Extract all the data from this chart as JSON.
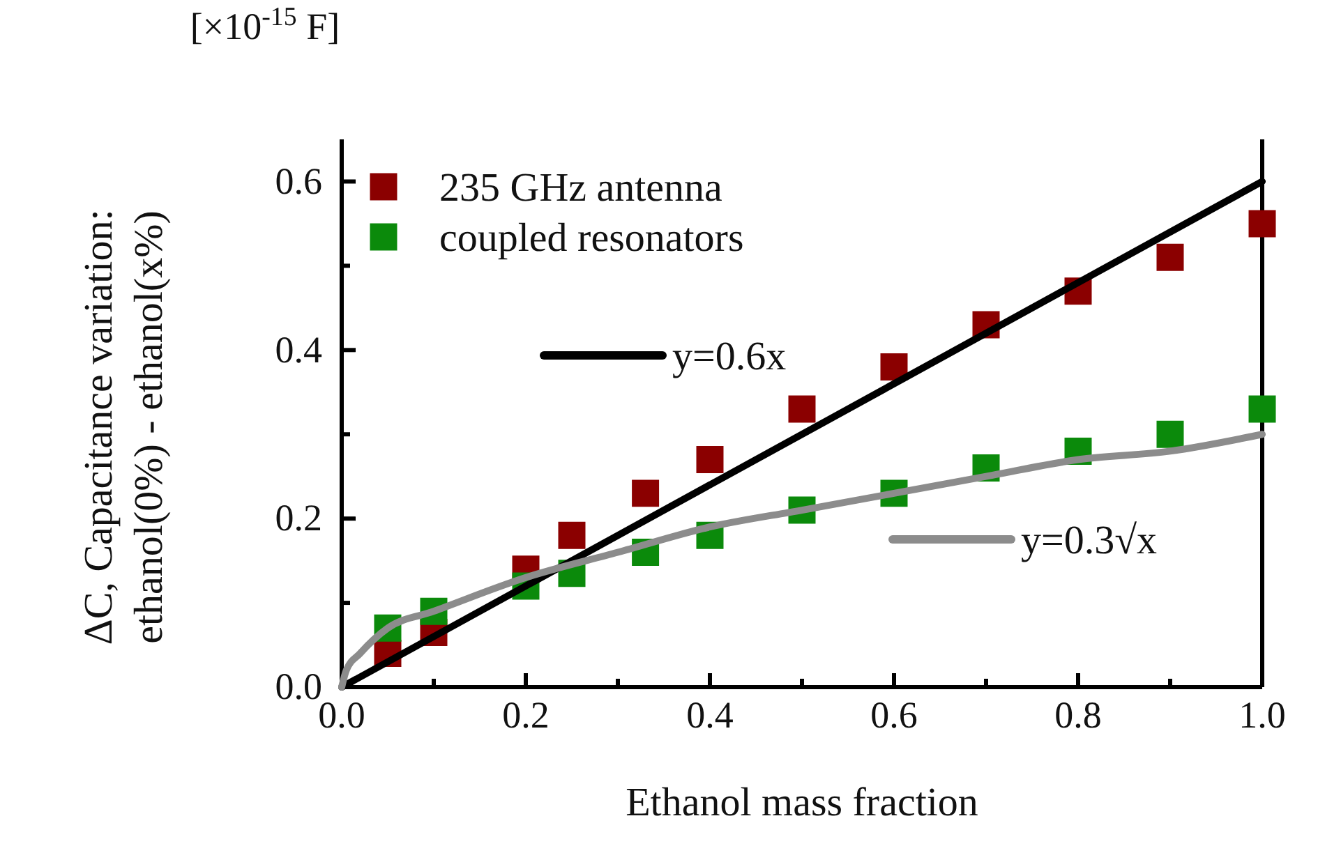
{
  "chart_data": {
    "type": "scatter",
    "xlabel": "Ethanol mass fraction",
    "ylabel": "ΔC, Capacitance variation:\nethanol(0%) - ethanol(x%)",
    "annotations": [
      "[×10$^{-15}$ F]"
    ],
    "xlim": [
      0,
      1.0
    ],
    "ylim": [
      0,
      0.65
    ],
    "xticks": [
      {
        "value": 0,
        "label": "0.0"
      },
      0.2,
      0.4,
      0.6,
      0.8,
      {
        "value": 1.0,
        "label": "1.0"
      },
      {
        "value": 0.1,
        "label": null
      },
      {
        "value": 0.3,
        "label": null
      },
      {
        "value": 0.5,
        "label": null
      },
      {
        "value": 0.7,
        "label": null
      },
      {
        "value": 0.9,
        "label": null
      }
    ],
    "yticks": [
      {
        "value": 0,
        "label": "0.0"
      },
      0.2,
      0.4,
      0.6,
      {
        "value": 0.1,
        "label": null
      },
      {
        "value": 0.3,
        "label": null
      },
      {
        "value": 0.5,
        "label": null
      }
    ],
    "grid": false,
    "legend": "top left",
    "marker": "square",
    "series": [
      {
        "name": "235 GHz antenna",
        "color": "#8b0000",
        "x": [
          0.05,
          0.1,
          0.2,
          0.25,
          0.33,
          0.4,
          0.5,
          0.6,
          0.7,
          0.8,
          0.9,
          1.0
        ],
        "values": [
          0.04,
          0.065,
          0.14,
          0.18,
          0.23,
          0.27,
          0.33,
          0.38,
          0.43,
          0.47,
          0.51,
          0.55
        ]
      },
      {
        "name": "coupled resonators",
        "color": "#0b8a0b",
        "x": [
          0.05,
          0.1,
          0.2,
          0.25,
          0.33,
          0.4,
          0.5,
          0.6,
          0.7,
          0.8,
          0.9,
          1.0
        ],
        "values": [
          0.07,
          0.09,
          0.12,
          0.135,
          0.16,
          0.18,
          0.21,
          0.23,
          0.26,
          0.28,
          0.3,
          0.33
        ]
      },
      {
        "name": "y=0.6x",
        "type": "line",
        "marker": "none",
        "color": "#000000",
        "x": [
          0,
          1.0
        ],
        "values": [
          0,
          0.6
        ]
      },
      {
        "name": "y=0.3√x",
        "type": "line",
        "marker": "none",
        "color": "#8c8c8c",
        "x": [
          0,
          0.005,
          0.02,
          0.05,
          0.1,
          0.2,
          0.3,
          0.4,
          0.5,
          0.6,
          0.7,
          0.8,
          0.9,
          1.0
        ],
        "values": [
          0,
          0.02,
          0.04,
          0.07,
          0.09,
          0.13,
          0.16,
          0.19,
          0.21,
          0.23,
          0.25,
          0.27,
          0.28,
          0.3
        ]
      }
    ]
  }
}
